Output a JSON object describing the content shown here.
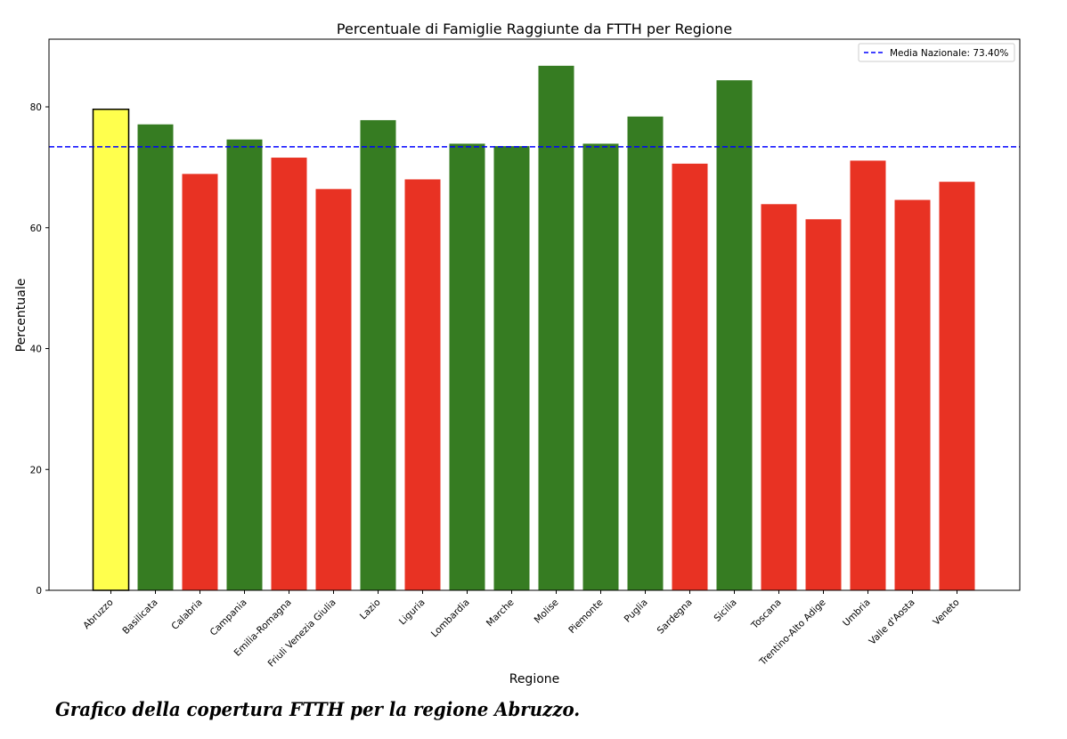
{
  "chart_data": {
    "type": "bar",
    "title": "Percentuale di Famiglie Raggiunte da FTTH per Regione",
    "xlabel": "Regione",
    "ylabel": "Percentuale",
    "ylim": [
      0,
      91.2
    ],
    "yticks": [
      0,
      20,
      40,
      60,
      80
    ],
    "grid": false,
    "legend_position": "top-right",
    "categories": [
      "Abruzzo",
      "Basilicata",
      "Calabria",
      "Campania",
      "Emilia-Romagna",
      "Friuli Venezia Giulia",
      "Lazio",
      "Liguria",
      "Lombardia",
      "Marche",
      "Molise",
      "Piemonte",
      "Puglia",
      "Sardegna",
      "Sicilia",
      "Toscana",
      "Trentino-Alto Adige",
      "Umbria",
      "Valle d'Aosta",
      "Veneto"
    ],
    "values": [
      79.6,
      77.1,
      68.9,
      74.6,
      71.6,
      66.4,
      77.8,
      68.0,
      73.9,
      73.5,
      86.8,
      73.9,
      78.4,
      70.6,
      84.4,
      63.9,
      61.4,
      71.1,
      64.6,
      67.6
    ],
    "highlight": "Abruzzo",
    "reference_line": {
      "value": 73.4,
      "label": "Media Nazionale: 73.40%",
      "color": "#0000ff",
      "style": "dashed"
    },
    "colors": {
      "highlight": "#ffff4d",
      "above": "#367c22",
      "below": "#e83223",
      "highlight_edge": "#000000"
    }
  },
  "caption": "Grafico della copertura FTTH per la regione Abruzzo."
}
